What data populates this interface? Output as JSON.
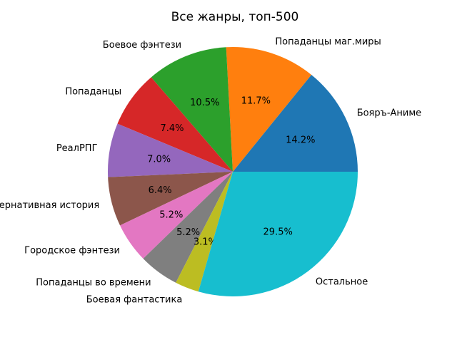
{
  "figure": {
    "background": "#ffffff",
    "text_color": "#000000"
  },
  "chart_data": {
    "type": "pie",
    "title": "Все жанры, топ-500",
    "start_angle_deg": 0,
    "direction": "counterclockwise",
    "legend_position": "none",
    "autopct_inside": true,
    "slices": [
      {
        "label": "Бояръ-Аниме",
        "value": 14.2,
        "pct_label": "14.2%",
        "color": "#1f77b4"
      },
      {
        "label": "Попаданцы маг.миры",
        "value": 11.7,
        "pct_label": "11.7%",
        "color": "#ff7f0e"
      },
      {
        "label": "Боевое фэнтези",
        "value": 10.5,
        "pct_label": "10.5%",
        "color": "#2ca02c"
      },
      {
        "label": "Попаданцы",
        "value": 7.4,
        "pct_label": "7.4%",
        "color": "#d62728"
      },
      {
        "label": "РеалРПГ",
        "value": 7.0,
        "pct_label": "7.0%",
        "color": "#9467bd"
      },
      {
        "label": "Альтернативная история",
        "value": 6.4,
        "pct_label": "6.4%",
        "color": "#8c564b"
      },
      {
        "label": "Городское фэнтези",
        "value": 5.2,
        "pct_label": "5.2%",
        "color": "#e377c2"
      },
      {
        "label": "Попаданцы во времени",
        "value": 5.2,
        "pct_label": "5.2%",
        "color": "#7f7f7f"
      },
      {
        "label": "Боевая фантастика",
        "value": 3.1,
        "pct_label": "3.1%",
        "color": "#bcbd22"
      },
      {
        "label": "Остальное",
        "value": 29.5,
        "pct_label": "29.5%",
        "color": "#17becf"
      }
    ]
  }
}
